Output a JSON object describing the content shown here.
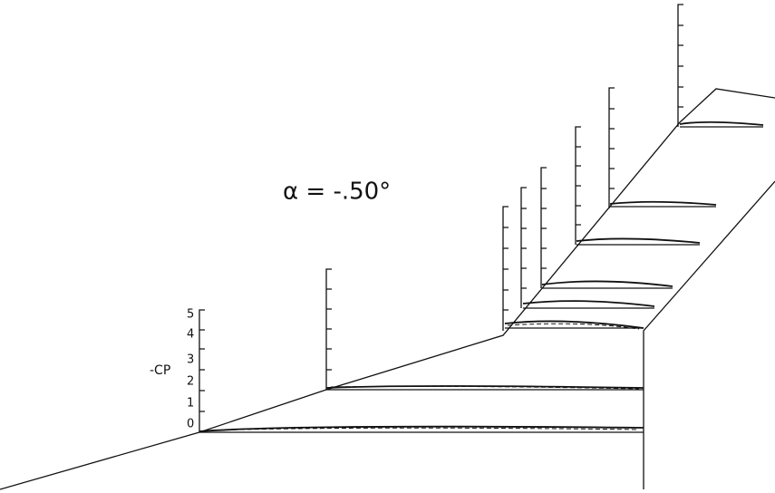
{
  "annotation": "α = -.50°",
  "axis": {
    "label": "-CP",
    "ticks": [
      "0",
      "1",
      "2",
      "3",
      "4",
      "5"
    ]
  }
}
